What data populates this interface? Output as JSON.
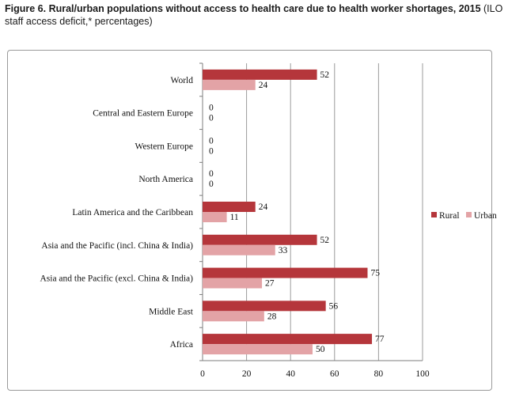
{
  "figure": {
    "title_bold": "Figure 6.  Rural/urban populations without access to health care due to health worker shortages, 2015",
    "title_rest": " (ILO staff access deficit,* percentages)"
  },
  "chart_data": {
    "type": "bar",
    "orientation": "horizontal",
    "categories": [
      "World",
      "Central and Eastern Europe",
      "Western Europe",
      "North America",
      "Latin America and the Caribbean",
      "Asia and the Pacific (incl. China & India)",
      "Asia and the Pacific (excl. China & India)",
      "Middle East",
      "Africa"
    ],
    "series": [
      {
        "name": "Rural",
        "values": [
          52,
          0,
          0,
          0,
          24,
          52,
          75,
          56,
          77
        ],
        "color": "#b5363b"
      },
      {
        "name": "Urban",
        "values": [
          24,
          0,
          0,
          0,
          11,
          33,
          27,
          28,
          50
        ],
        "color": "#e3a3a6"
      }
    ],
    "xlim": [
      0,
      100
    ],
    "xticks": [
      0,
      20,
      40,
      60,
      80,
      100
    ],
    "grid": true,
    "legend_position": "right"
  }
}
